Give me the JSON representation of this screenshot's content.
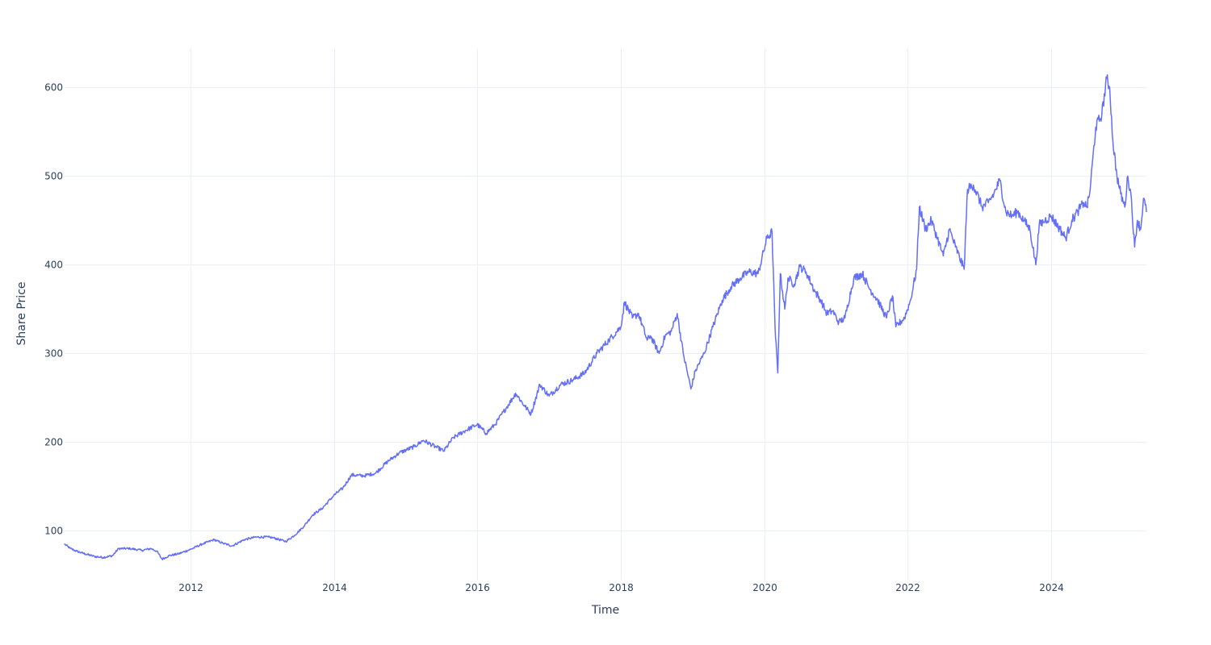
{
  "chart_data": {
    "type": "line",
    "xlabel": "Time",
    "ylabel": "Share Price",
    "x_ticks": [
      "2012",
      "2014",
      "2016",
      "2018",
      "2020",
      "2022",
      "2024"
    ],
    "y_ticks": [
      100,
      200,
      300,
      400,
      500,
      600
    ],
    "xlim": [
      "2010-04-01",
      "2025-04-30"
    ],
    "ylim": [
      44,
      644
    ],
    "grid": true,
    "legend": "none",
    "colors": {
      "series": "#636efa",
      "grid": "#ebf0f8",
      "text": "#2a3f5f"
    },
    "series": [
      {
        "x": [
          "2010-04-01",
          "2010-05-01",
          "2010-06-01",
          "2010-07-15",
          "2010-09-01",
          "2010-10-15",
          "2010-12-01",
          "2011-01-01",
          "2011-03-01",
          "2011-05-01",
          "2011-06-15",
          "2011-07-15",
          "2011-08-10",
          "2011-09-15",
          "2011-11-01",
          "2012-01-01",
          "2012-03-01",
          "2012-05-01",
          "2012-06-15",
          "2012-08-01",
          "2012-10-01",
          "2012-12-01",
          "2013-02-01",
          "2013-03-01",
          "2013-05-01",
          "2013-06-15",
          "2013-08-01",
          "2013-09-15",
          "2013-11-01",
          "2014-01-01",
          "2014-02-15",
          "2014-04-01",
          "2014-06-01",
          "2014-08-01",
          "2014-10-01",
          "2014-12-01",
          "2015-02-15",
          "2015-04-01",
          "2015-06-01",
          "2015-07-15",
          "2015-09-01",
          "2015-11-01",
          "2016-01-01",
          "2016-02-15",
          "2016-04-01",
          "2016-06-01",
          "2016-07-15",
          "2016-09-01",
          "2016-10-01",
          "2016-11-15",
          "2017-01-01",
          "2017-03-01",
          "2017-05-01",
          "2017-07-01",
          "2017-09-01",
          "2017-11-01",
          "2018-01-01",
          "2018-01-20",
          "2018-03-01",
          "2018-04-01",
          "2018-05-15",
          "2018-06-01",
          "2018-07-15",
          "2018-08-15",
          "2018-09-15",
          "2018-10-15",
          "2018-11-15",
          "2018-12-24",
          "2019-01-15",
          "2019-03-01",
          "2019-04-15",
          "2019-06-01",
          "2019-07-15",
          "2019-09-01",
          "2019-10-15",
          "2019-12-01",
          "2020-01-15",
          "2020-02-10",
          "2020-02-25",
          "2020-03-10",
          "2020-03-23",
          "2020-04-15",
          "2020-05-01",
          "2020-06-01",
          "2020-07-01",
          "2020-08-01",
          "2020-09-15",
          "2020-10-15",
          "2020-11-15",
          "2020-12-15",
          "2021-01-15",
          "2021-02-15",
          "2021-04-01",
          "2021-05-15",
          "2021-06-15",
          "2021-08-01",
          "2021-09-15",
          "2021-10-15",
          "2021-11-01",
          "2021-12-15",
          "2022-01-15",
          "2022-02-15",
          "2022-03-01",
          "2022-04-01",
          "2022-05-01",
          "2022-06-01",
          "2022-07-01",
          "2022-08-01",
          "2022-09-01",
          "2022-10-15",
          "2022-11-01",
          "2022-12-01",
          "2023-01-15",
          "2023-02-15",
          "2023-03-15",
          "2023-04-15",
          "2023-05-15",
          "2023-06-15",
          "2023-07-15",
          "2023-08-15",
          "2023-09-15",
          "2023-10-15",
          "2023-11-01",
          "2023-12-01",
          "2024-01-01",
          "2024-02-15",
          "2024-03-15",
          "2024-04-15",
          "2024-05-15",
          "2024-06-15",
          "2024-07-01",
          "2024-07-15",
          "2024-08-15",
          "2024-09-15",
          "2024-10-10",
          "2024-10-25",
          "2024-11-10",
          "2024-12-01",
          "2024-12-20",
          "2025-01-10",
          "2025-01-25",
          "2025-02-10",
          "2025-03-01",
          "2025-03-15",
          "2025-04-01",
          "2025-04-15",
          "2025-04-30"
        ],
        "y": [
          85,
          80,
          77,
          74,
          71,
          70,
          72,
          80,
          80,
          78,
          80,
          77,
          68,
          72,
          74,
          79,
          85,
          90,
          86,
          83,
          90,
          93,
          93,
          92,
          88,
          95,
          105,
          118,
          125,
          140,
          148,
          163,
          162,
          165,
          178,
          188,
          195,
          202,
          195,
          190,
          205,
          213,
          220,
          210,
          220,
          240,
          255,
          240,
          232,
          265,
          252,
          265,
          270,
          278,
          300,
          315,
          330,
          358,
          340,
          345,
          315,
          320,
          300,
          320,
          325,
          345,
          300,
          260,
          280,
          300,
          330,
          360,
          375,
          385,
          392,
          390,
          430,
          437,
          330,
          278,
          390,
          350,
          385,
          378,
          398,
          392,
          370,
          360,
          345,
          348,
          335,
          340,
          385,
          390,
          375,
          360,
          340,
          365,
          330,
          340,
          360,
          395,
          465,
          440,
          450,
          430,
          410,
          440,
          420,
          395,
          485,
          490,
          465,
          470,
          480,
          495,
          460,
          455,
          460,
          450,
          440,
          400,
          445,
          450,
          455,
          440,
          430,
          450,
          460,
          470,
          465,
          480,
          555,
          570,
          610,
          600,
          540,
          500,
          480,
          465,
          500,
          480,
          420,
          450,
          440,
          475,
          460
        ]
      }
    ]
  }
}
